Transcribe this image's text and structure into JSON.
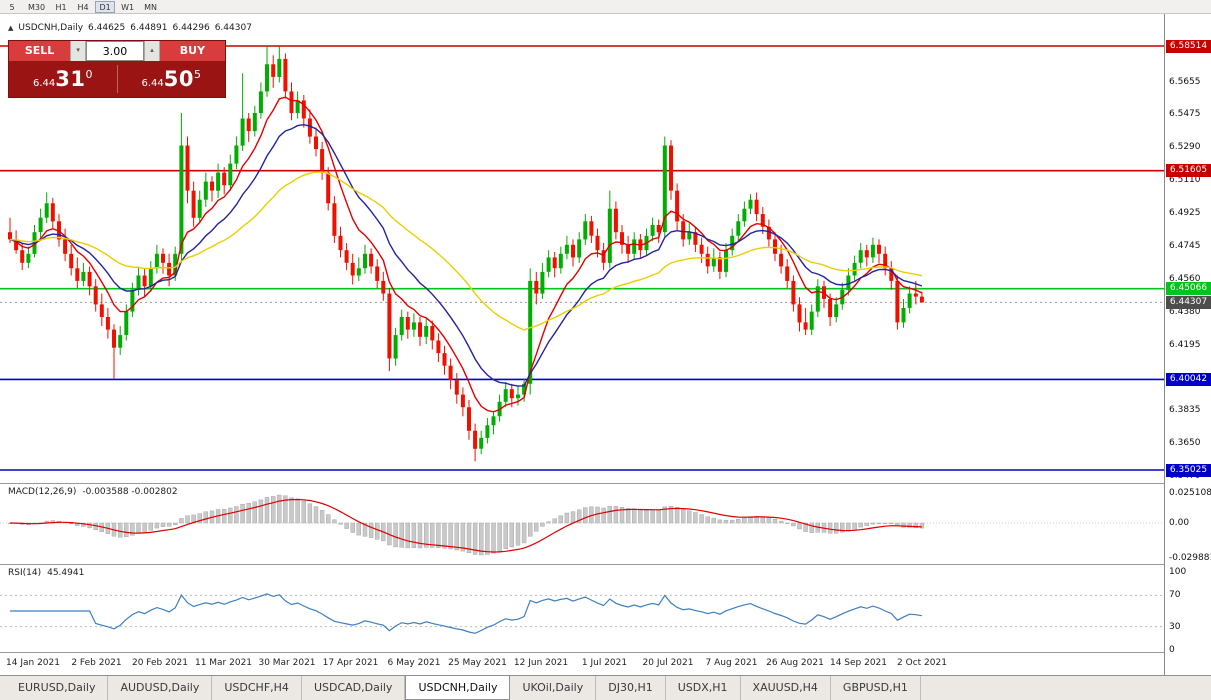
{
  "toolbar": {
    "timeframes": [
      {
        "label": "5",
        "active": false
      },
      {
        "label": "M30",
        "active": false
      },
      {
        "label": "H1",
        "active": false
      },
      {
        "label": "H4",
        "active": false
      },
      {
        "label": "D1",
        "active": true
      },
      {
        "label": "W1",
        "active": false
      },
      {
        "label": "MN",
        "active": false
      }
    ]
  },
  "chart_header": {
    "marker": "▲",
    "symbol": "USDCNH,Daily",
    "open": "6.44625",
    "high": "6.44891",
    "low": "6.44296",
    "close": "6.44307"
  },
  "trade_panel": {
    "sell_label": "SELL",
    "buy_label": "BUY",
    "lot_value": "3.00",
    "sell_price": {
      "base": "6.44",
      "big": "31",
      "sup": "0"
    },
    "buy_price": {
      "base": "6.44",
      "big": "50",
      "sup": "5"
    }
  },
  "chart_data": {
    "type": "candlestick",
    "title": "USDCNH,Daily",
    "price_axis_ticks": [
      "6.5655",
      "6.5475",
      "6.5290",
      "6.5110",
      "6.4925",
      "6.4745",
      "6.4560",
      "6.4380",
      "6.4195",
      "6.3835",
      "6.3650",
      "6.3470"
    ],
    "levels": [
      {
        "price": 6.58514,
        "label": "6.58514",
        "color": "#c80000"
      },
      {
        "price": 6.51605,
        "label": "6.51605",
        "color": "#c80000"
      },
      {
        "price": 6.45066,
        "label": "6.45066",
        "color": "#00c41e"
      },
      {
        "price": 6.40042,
        "label": "6.40042",
        "color": "#0000c8"
      },
      {
        "price": 6.35025,
        "label": "6.35025",
        "color": "#0000c8"
      }
    ],
    "current_price": {
      "value": 6.44307,
      "label": "6.44307",
      "badge_color": "#4d4d4d"
    },
    "moving_averages": [
      {
        "period": 8,
        "color": "#e00000"
      },
      {
        "period": 16,
        "color": "#24249a"
      },
      {
        "period": 40,
        "color": "#e9cf00"
      }
    ],
    "candle_colors": {
      "up": "#00ad00",
      "down": "#ee1100"
    },
    "ohlc": [
      [
        6.482,
        6.49,
        6.476,
        6.478
      ],
      [
        6.478,
        6.483,
        6.47,
        6.472
      ],
      [
        6.472,
        6.476,
        6.461,
        6.465
      ],
      [
        6.465,
        6.474,
        6.462,
        6.47
      ],
      [
        6.47,
        6.486,
        6.468,
        6.482
      ],
      [
        6.482,
        6.495,
        6.479,
        6.49
      ],
      [
        6.49,
        6.504,
        6.487,
        6.498
      ],
      [
        6.498,
        6.501,
        6.484,
        6.488
      ],
      [
        6.488,
        6.492,
        6.474,
        6.478
      ],
      [
        6.478,
        6.484,
        6.466,
        6.47
      ],
      [
        6.47,
        6.475,
        6.458,
        6.462
      ],
      [
        6.462,
        6.468,
        6.451,
        6.455
      ],
      [
        6.455,
        6.465,
        6.452,
        6.46
      ],
      [
        6.46,
        6.463,
        6.447,
        6.452
      ],
      [
        6.452,
        6.456,
        6.438,
        6.442
      ],
      [
        6.442,
        6.448,
        6.43,
        6.435
      ],
      [
        6.435,
        6.44,
        6.423,
        6.428
      ],
      [
        6.428,
        6.431,
        6.401,
        6.418
      ],
      [
        6.418,
        6.43,
        6.414,
        6.425
      ],
      [
        6.425,
        6.442,
        6.422,
        6.438
      ],
      [
        6.438,
        6.454,
        6.435,
        6.45
      ],
      [
        6.45,
        6.463,
        6.447,
        6.458
      ],
      [
        6.458,
        6.462,
        6.446,
        6.452
      ],
      [
        6.452,
        6.466,
        6.449,
        6.462
      ],
      [
        6.462,
        6.475,
        6.459,
        6.47
      ],
      [
        6.47,
        6.473,
        6.459,
        6.465
      ],
      [
        6.465,
        6.47,
        6.452,
        6.458
      ],
      [
        6.458,
        6.474,
        6.455,
        6.47
      ],
      [
        6.47,
        6.548,
        6.466,
        6.53
      ],
      [
        6.53,
        6.535,
        6.498,
        6.505
      ],
      [
        6.505,
        6.51,
        6.485,
        6.49
      ],
      [
        6.49,
        6.505,
        6.487,
        6.5
      ],
      [
        6.5,
        6.515,
        6.496,
        6.51
      ],
      [
        6.51,
        6.513,
        6.499,
        6.505
      ],
      [
        6.505,
        6.52,
        6.501,
        6.515
      ],
      [
        6.515,
        6.518,
        6.503,
        6.508
      ],
      [
        6.508,
        6.525,
        6.505,
        6.52
      ],
      [
        6.52,
        6.535,
        6.517,
        6.53
      ],
      [
        6.53,
        6.57,
        6.527,
        6.545
      ],
      [
        6.545,
        6.548,
        6.532,
        6.538
      ],
      [
        6.538,
        6.552,
        6.535,
        6.548
      ],
      [
        6.548,
        6.565,
        6.545,
        6.56
      ],
      [
        6.56,
        6.585,
        6.557,
        6.575
      ],
      [
        6.575,
        6.58,
        6.562,
        6.568
      ],
      [
        6.568,
        6.585,
        6.565,
        6.578
      ],
      [
        6.578,
        6.581,
        6.556,
        6.56
      ],
      [
        6.56,
        6.565,
        6.544,
        6.548
      ],
      [
        6.548,
        6.56,
        6.545,
        6.555
      ],
      [
        6.555,
        6.558,
        6.54,
        6.545
      ],
      [
        6.545,
        6.55,
        6.531,
        6.535
      ],
      [
        6.535,
        6.54,
        6.524,
        6.528
      ],
      [
        6.528,
        6.532,
        6.511,
        6.515
      ],
      [
        6.515,
        6.518,
        6.494,
        6.498
      ],
      [
        6.498,
        6.502,
        6.476,
        6.48
      ],
      [
        6.48,
        6.485,
        6.468,
        6.472
      ],
      [
        6.472,
        6.476,
        6.461,
        6.465
      ],
      [
        6.465,
        6.47,
        6.453,
        6.458
      ],
      [
        6.458,
        6.468,
        6.455,
        6.462
      ],
      [
        6.462,
        6.475,
        6.459,
        6.47
      ],
      [
        6.47,
        6.473,
        6.459,
        6.463
      ],
      [
        6.463,
        6.467,
        6.451,
        6.455
      ],
      [
        6.455,
        6.46,
        6.444,
        6.448
      ],
      [
        6.448,
        6.451,
        6.405,
        6.412
      ],
      [
        6.412,
        6.429,
        6.408,
        6.425
      ],
      [
        6.425,
        6.439,
        6.422,
        6.435
      ],
      [
        6.435,
        6.438,
        6.423,
        6.428
      ],
      [
        6.428,
        6.437,
        6.424,
        6.432
      ],
      [
        6.432,
        6.435,
        6.419,
        6.424
      ],
      [
        6.424,
        6.434,
        6.42,
        6.43
      ],
      [
        6.43,
        6.433,
        6.417,
        6.422
      ],
      [
        6.422,
        6.426,
        6.41,
        6.415
      ],
      [
        6.415,
        6.419,
        6.403,
        6.408
      ],
      [
        6.408,
        6.412,
        6.395,
        6.4
      ],
      [
        6.4,
        6.404,
        6.387,
        6.392
      ],
      [
        6.392,
        6.396,
        6.38,
        6.385
      ],
      [
        6.385,
        6.389,
        6.367,
        6.372
      ],
      [
        6.372,
        6.376,
        6.355,
        6.362
      ],
      [
        6.362,
        6.372,
        6.359,
        6.368
      ],
      [
        6.368,
        6.379,
        6.365,
        6.375
      ],
      [
        6.375,
        6.383,
        6.37,
        6.38
      ],
      [
        6.38,
        6.392,
        6.377,
        6.388
      ],
      [
        6.388,
        6.399,
        6.385,
        6.395
      ],
      [
        6.395,
        6.398,
        6.385,
        6.39
      ],
      [
        6.39,
        6.397,
        6.386,
        6.392
      ],
      [
        6.392,
        6.401,
        6.388,
        6.398
      ],
      [
        6.398,
        6.462,
        6.392,
        6.455
      ],
      [
        6.455,
        6.46,
        6.442,
        6.448
      ],
      [
        6.448,
        6.465,
        6.445,
        6.46
      ],
      [
        6.46,
        6.472,
        6.457,
        6.468
      ],
      [
        6.468,
        6.471,
        6.457,
        6.462
      ],
      [
        6.462,
        6.474,
        6.459,
        6.47
      ],
      [
        6.47,
        6.48,
        6.467,
        6.475
      ],
      [
        6.475,
        6.478,
        6.463,
        6.468
      ],
      [
        6.468,
        6.482,
        6.465,
        6.478
      ],
      [
        6.478,
        6.492,
        6.475,
        6.488
      ],
      [
        6.488,
        6.491,
        6.476,
        6.48
      ],
      [
        6.48,
        6.484,
        6.468,
        6.472
      ],
      [
        6.472,
        6.476,
        6.461,
        6.465
      ],
      [
        6.465,
        6.505,
        6.462,
        6.495
      ],
      [
        6.495,
        6.499,
        6.478,
        6.482
      ],
      [
        6.482,
        6.486,
        6.47,
        6.475
      ],
      [
        6.475,
        6.48,
        6.465,
        6.47
      ],
      [
        6.47,
        6.482,
        6.467,
        6.478
      ],
      [
        6.478,
        6.481,
        6.468,
        6.472
      ],
      [
        6.472,
        6.484,
        6.469,
        6.48
      ],
      [
        6.48,
        6.49,
        6.477,
        6.486
      ],
      [
        6.486,
        6.489,
        6.476,
        6.482
      ],
      [
        6.482,
        6.535,
        6.479,
        6.53
      ],
      [
        6.53,
        6.533,
        6.5,
        6.505
      ],
      [
        6.505,
        6.509,
        6.483,
        6.488
      ],
      [
        6.488,
        6.492,
        6.474,
        6.478
      ],
      [
        6.478,
        6.487,
        6.475,
        6.482
      ],
      [
        6.482,
        6.485,
        6.471,
        6.475
      ],
      [
        6.475,
        6.479,
        6.465,
        6.47
      ],
      [
        6.47,
        6.474,
        6.459,
        6.463
      ],
      [
        6.463,
        6.473,
        6.46,
        6.468
      ],
      [
        6.468,
        6.471,
        6.456,
        6.46
      ],
      [
        6.46,
        6.476,
        6.457,
        6.472
      ],
      [
        6.472,
        6.484,
        6.469,
        6.48
      ],
      [
        6.48,
        6.492,
        6.477,
        6.488
      ],
      [
        6.488,
        6.499,
        6.485,
        6.495
      ],
      [
        6.495,
        6.503,
        6.492,
        6.5
      ],
      [
        6.5,
        6.504,
        6.488,
        6.492
      ],
      [
        6.492,
        6.496,
        6.481,
        6.485
      ],
      [
        6.485,
        6.489,
        6.474,
        6.478
      ],
      [
        6.478,
        6.482,
        6.466,
        6.47
      ],
      [
        6.47,
        6.475,
        6.459,
        6.463
      ],
      [
        6.463,
        6.467,
        6.451,
        6.455
      ],
      [
        6.455,
        6.458,
        6.438,
        6.442
      ],
      [
        6.442,
        6.446,
        6.427,
        6.432
      ],
      [
        6.432,
        6.44,
        6.425,
        6.428
      ],
      [
        6.428,
        6.442,
        6.425,
        6.438
      ],
      [
        6.438,
        6.456,
        6.435,
        6.452
      ],
      [
        6.452,
        6.455,
        6.44,
        6.445
      ],
      [
        6.445,
        6.448,
        6.43,
        6.435
      ],
      [
        6.435,
        6.446,
        6.432,
        6.442
      ],
      [
        6.442,
        6.454,
        6.439,
        6.45
      ],
      [
        6.45,
        6.462,
        6.447,
        6.458
      ],
      [
        6.458,
        6.469,
        6.455,
        6.465
      ],
      [
        6.465,
        6.476,
        6.462,
        6.472
      ],
      [
        6.472,
        6.475,
        6.463,
        6.468
      ],
      [
        6.468,
        6.479,
        6.465,
        6.475
      ],
      [
        6.475,
        6.478,
        6.465,
        6.47
      ],
      [
        6.47,
        6.474,
        6.458,
        6.462
      ],
      [
        6.462,
        6.466,
        6.45,
        6.455
      ],
      [
        6.455,
        6.458,
        6.428,
        6.432
      ],
      [
        6.432,
        6.445,
        6.429,
        6.44
      ],
      [
        6.44,
        6.452,
        6.437,
        6.448
      ],
      [
        6.448,
        6.455,
        6.442,
        6.4463
      ],
      [
        6.4463,
        6.4489,
        6.443,
        6.4431
      ]
    ]
  },
  "macd_panel": {
    "label": "MACD(12,26,9)",
    "values": "-0.003588 -0.002802",
    "axis_labels": [
      "0.025108",
      "0.00",
      "-0.029881"
    ],
    "params": {
      "fast": 12,
      "slow": 26,
      "signal": 9
    },
    "colors": {
      "histogram": "#c9c9c9",
      "histogram_stroke": "#9e9e9e",
      "signal": "#dd0000"
    }
  },
  "rsi_panel": {
    "label": "RSI(14)",
    "value": "45.4941",
    "axis_labels": [
      100,
      70,
      30,
      0
    ],
    "levels": [
      70,
      30
    ],
    "period": 14,
    "color": "#3e7fc1"
  },
  "time_axis": {
    "labels": [
      "14 Jan 2021",
      "2 Feb 2021",
      "20 Feb 2021",
      "11 Mar 2021",
      "30 Mar 2021",
      "17 Apr 2021",
      "6 May 2021",
      "25 May 2021",
      "12 Jun 2021",
      "1 Jul 2021",
      "20 Jul 2021",
      "7 Aug 2021",
      "26 Aug 2021",
      "14 Sep 2021",
      "2 Oct 2021"
    ]
  },
  "tabs": [
    {
      "label": "EURUSD,Daily",
      "active": false
    },
    {
      "label": "AUDUSD,Daily",
      "active": false
    },
    {
      "label": "USDCHF,H4",
      "active": false
    },
    {
      "label": "USDCAD,Daily",
      "active": false
    },
    {
      "label": "USDCNH,Daily",
      "active": true
    },
    {
      "label": "UKOil,Daily",
      "active": false
    },
    {
      "label": "DJ30,H1",
      "active": false
    },
    {
      "label": "USDX,H1",
      "active": false
    },
    {
      "label": "XAUUSD,H4",
      "active": false
    },
    {
      "label": "GBPUSD,H1",
      "active": false
    }
  ]
}
